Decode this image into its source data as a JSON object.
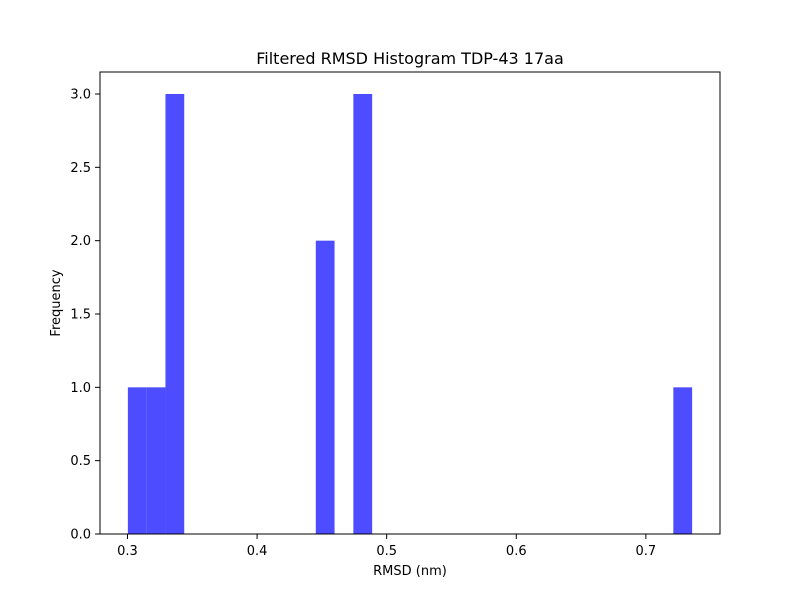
{
  "chart_data": {
    "type": "bar",
    "title": "Filtered RMSD Histogram TDP-43 17aa",
    "xlabel": "RMSD (nm)",
    "ylabel": "Frequency",
    "xlim": [
      0.2788,
      0.7572
    ],
    "ylim": [
      0,
      3.15
    ],
    "x_ticks": [
      0.3,
      0.4,
      0.5,
      0.6,
      0.7
    ],
    "x_tick_labels": [
      "0.3",
      "0.4",
      "0.5",
      "0.6",
      "0.7"
    ],
    "y_ticks": [
      0,
      0.5,
      1.0,
      1.5,
      2.0,
      2.5,
      3.0
    ],
    "y_tick_labels": [
      "0.0",
      "0.5",
      "1.0",
      "1.5",
      "2.0",
      "2.5",
      "3.0"
    ],
    "grid": false,
    "bar_color": "#4d4dff",
    "bins": [
      {
        "x0": 0.3003,
        "x1": 0.3148,
        "count": 1
      },
      {
        "x0": 0.3148,
        "x1": 0.3293,
        "count": 1
      },
      {
        "x0": 0.3293,
        "x1": 0.3438,
        "count": 3
      },
      {
        "x0": 0.4453,
        "x1": 0.4598,
        "count": 2
      },
      {
        "x0": 0.4743,
        "x1": 0.4888,
        "count": 3
      },
      {
        "x0": 0.7212,
        "x1": 0.7357,
        "count": 1
      }
    ]
  }
}
